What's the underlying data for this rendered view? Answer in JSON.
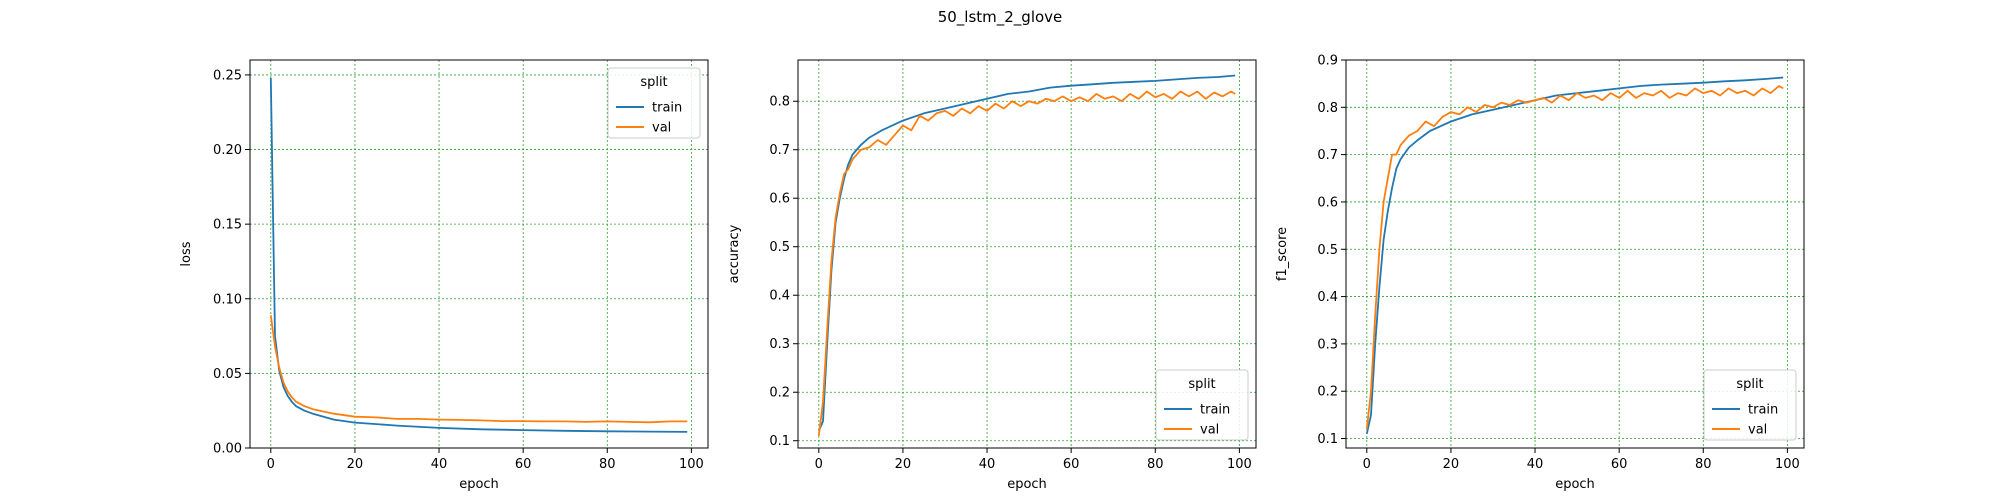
{
  "figure": {
    "title": "50_lstm_2_glove"
  },
  "colors": {
    "train": "#1f77b4",
    "val": "#ff7f0e",
    "grid": "#2ca02c"
  },
  "chart_data": [
    {
      "type": "line",
      "xlabel": "epoch",
      "ylabel": "loss",
      "xlim": [
        -4.95,
        103.95
      ],
      "ylim": [
        0.0,
        0.26
      ],
      "xticks": [
        0,
        20,
        40,
        60,
        80,
        100
      ],
      "yticks": [
        0.0,
        0.05,
        0.1,
        0.15,
        0.2,
        0.25
      ],
      "ytick_labels": [
        "0.00",
        "0.05",
        "0.10",
        "0.15",
        "0.20",
        "0.25"
      ],
      "grid": true,
      "legend": {
        "title": "split",
        "placement": "upper right"
      },
      "series": [
        {
          "name": "train",
          "x": [
            0,
            1,
            2,
            3,
            4,
            5,
            6,
            8,
            10,
            15,
            20,
            30,
            40,
            50,
            60,
            70,
            80,
            90,
            99
          ],
          "y": [
            0.248,
            0.075,
            0.052,
            0.041,
            0.035,
            0.031,
            0.028,
            0.025,
            0.023,
            0.019,
            0.017,
            0.015,
            0.0135,
            0.0125,
            0.012,
            0.0115,
            0.0112,
            0.011,
            0.0108
          ]
        },
        {
          "name": "val",
          "x": [
            0,
            1,
            2,
            3,
            4,
            5,
            6,
            8,
            10,
            15,
            20,
            25,
            30,
            35,
            40,
            45,
            50,
            55,
            60,
            65,
            70,
            75,
            80,
            85,
            90,
            95,
            99
          ],
          "y": [
            0.089,
            0.068,
            0.054,
            0.044,
            0.038,
            0.034,
            0.031,
            0.028,
            0.026,
            0.023,
            0.021,
            0.0205,
            0.0195,
            0.0195,
            0.019,
            0.0188,
            0.0185,
            0.018,
            0.018,
            0.0178,
            0.0178,
            0.0175,
            0.0178,
            0.0175,
            0.0172,
            0.0178,
            0.0178
          ]
        }
      ]
    },
    {
      "type": "line",
      "xlabel": "epoch",
      "ylabel": "accuracy",
      "xlim": [
        -4.95,
        103.95
      ],
      "ylim": [
        0.085,
        0.885
      ],
      "xticks": [
        0,
        20,
        40,
        60,
        80,
        100
      ],
      "yticks": [
        0.1,
        0.2,
        0.3,
        0.4,
        0.5,
        0.6,
        0.7,
        0.8
      ],
      "ytick_labels": [
        "0.1",
        "0.2",
        "0.3",
        "0.4",
        "0.5",
        "0.6",
        "0.7",
        "0.8"
      ],
      "grid": true,
      "legend": {
        "title": "split",
        "placement": "lower right"
      },
      "series": [
        {
          "name": "train",
          "x": [
            0,
            1,
            2,
            3,
            4,
            5,
            6,
            7,
            8,
            10,
            12,
            15,
            20,
            25,
            30,
            35,
            40,
            45,
            50,
            55,
            60,
            65,
            70,
            75,
            80,
            85,
            90,
            95,
            99
          ],
          "y": [
            0.12,
            0.14,
            0.3,
            0.45,
            0.55,
            0.6,
            0.64,
            0.67,
            0.69,
            0.71,
            0.725,
            0.74,
            0.76,
            0.775,
            0.785,
            0.795,
            0.805,
            0.815,
            0.82,
            0.828,
            0.832,
            0.835,
            0.838,
            0.84,
            0.842,
            0.845,
            0.848,
            0.85,
            0.853
          ]
        },
        {
          "name": "val",
          "x": [
            0,
            1,
            2,
            3,
            4,
            5,
            6,
            7,
            8,
            9,
            10,
            12,
            14,
            16,
            18,
            20,
            22,
            24,
            26,
            28,
            30,
            32,
            34,
            36,
            38,
            40,
            42,
            44,
            46,
            48,
            50,
            52,
            54,
            56,
            58,
            60,
            62,
            64,
            66,
            68,
            70,
            72,
            74,
            76,
            78,
            80,
            82,
            84,
            86,
            88,
            90,
            92,
            94,
            96,
            98,
            99
          ],
          "y": [
            0.11,
            0.18,
            0.33,
            0.47,
            0.56,
            0.61,
            0.65,
            0.66,
            0.68,
            0.69,
            0.7,
            0.705,
            0.72,
            0.71,
            0.73,
            0.75,
            0.74,
            0.77,
            0.76,
            0.775,
            0.78,
            0.77,
            0.785,
            0.775,
            0.79,
            0.78,
            0.795,
            0.785,
            0.8,
            0.79,
            0.8,
            0.795,
            0.805,
            0.8,
            0.81,
            0.8,
            0.808,
            0.8,
            0.815,
            0.805,
            0.81,
            0.8,
            0.815,
            0.805,
            0.82,
            0.808,
            0.815,
            0.805,
            0.82,
            0.81,
            0.82,
            0.805,
            0.818,
            0.81,
            0.82,
            0.815
          ]
        }
      ]
    },
    {
      "type": "line",
      "xlabel": "epoch",
      "ylabel": "f1_score",
      "xlim": [
        -4.95,
        103.95
      ],
      "ylim": [
        0.08,
        0.9
      ],
      "xticks": [
        0,
        20,
        40,
        60,
        80,
        100
      ],
      "yticks": [
        0.1,
        0.2,
        0.3,
        0.4,
        0.5,
        0.6,
        0.7,
        0.8,
        0.9
      ],
      "ytick_labels": [
        "0.1",
        "0.2",
        "0.3",
        "0.4",
        "0.5",
        "0.6",
        "0.7",
        "0.8",
        "0.9"
      ],
      "grid": true,
      "legend": {
        "title": "split",
        "placement": "lower right"
      },
      "series": [
        {
          "name": "train",
          "x": [
            0,
            1,
            2,
            3,
            4,
            5,
            6,
            7,
            8,
            10,
            12,
            15,
            20,
            25,
            30,
            35,
            40,
            45,
            50,
            55,
            60,
            65,
            70,
            75,
            80,
            85,
            90,
            95,
            99
          ],
          "y": [
            0.11,
            0.15,
            0.3,
            0.42,
            0.52,
            0.58,
            0.63,
            0.67,
            0.69,
            0.715,
            0.73,
            0.75,
            0.77,
            0.785,
            0.795,
            0.805,
            0.815,
            0.825,
            0.83,
            0.835,
            0.84,
            0.845,
            0.848,
            0.85,
            0.852,
            0.855,
            0.857,
            0.86,
            0.863
          ]
        },
        {
          "name": "val",
          "x": [
            0,
            1,
            2,
            3,
            4,
            5,
            6,
            7,
            8,
            9,
            10,
            12,
            14,
            16,
            18,
            20,
            22,
            24,
            26,
            28,
            30,
            32,
            34,
            36,
            38,
            40,
            42,
            44,
            46,
            48,
            50,
            52,
            54,
            56,
            58,
            60,
            62,
            64,
            66,
            68,
            70,
            72,
            74,
            76,
            78,
            80,
            82,
            84,
            86,
            88,
            90,
            92,
            94,
            96,
            98,
            99
          ],
          "y": [
            0.12,
            0.2,
            0.36,
            0.5,
            0.6,
            0.65,
            0.7,
            0.7,
            0.72,
            0.73,
            0.74,
            0.75,
            0.77,
            0.76,
            0.78,
            0.79,
            0.785,
            0.8,
            0.79,
            0.805,
            0.8,
            0.81,
            0.805,
            0.815,
            0.81,
            0.815,
            0.82,
            0.81,
            0.825,
            0.815,
            0.83,
            0.82,
            0.825,
            0.815,
            0.83,
            0.82,
            0.835,
            0.82,
            0.83,
            0.825,
            0.835,
            0.82,
            0.83,
            0.825,
            0.84,
            0.83,
            0.835,
            0.825,
            0.84,
            0.83,
            0.835,
            0.825,
            0.84,
            0.83,
            0.845,
            0.84
          ]
        }
      ]
    }
  ]
}
